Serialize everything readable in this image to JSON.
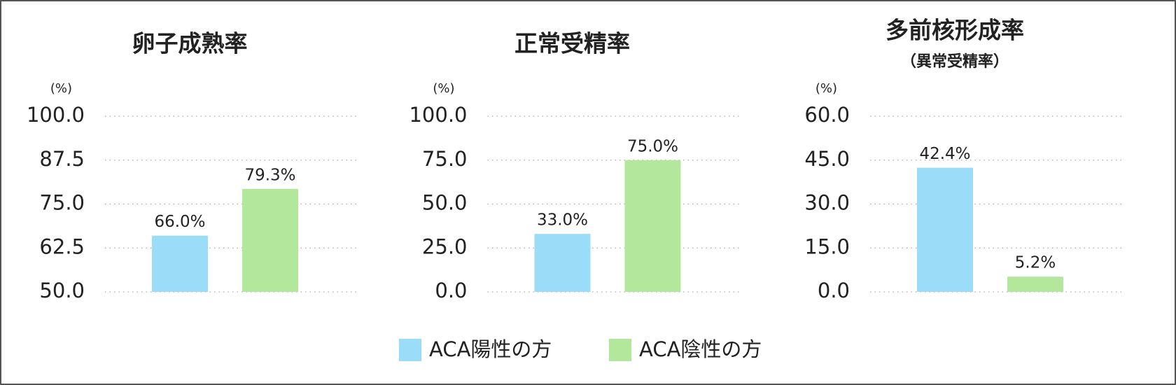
{
  "chart_data": [
    {
      "type": "bar",
      "title": "卵子成熟率",
      "y_unit": "(%)",
      "values": [
        66.0,
        79.3
      ],
      "value_labels": [
        "66.0%",
        "79.3%"
      ],
      "ylim": [
        50,
        100
      ],
      "yticks": [
        {
          "value": 50,
          "label": "50.0"
        },
        {
          "value": 62.5,
          "label": "62.5"
        },
        {
          "value": 75,
          "label": "75.0"
        },
        {
          "value": 87.5,
          "label": "87.5"
        },
        {
          "value": 100,
          "label": "100.0"
        }
      ],
      "grid": true
    },
    {
      "type": "bar",
      "title": "正常受精率",
      "y_unit": "(%)",
      "values": [
        33.0,
        75.0
      ],
      "value_labels": [
        "33.0%",
        "75.0%"
      ],
      "ylim": [
        0,
        100
      ],
      "yticks": [
        {
          "value": 0,
          "label": "0.0"
        },
        {
          "value": 25,
          "label": "25.0"
        },
        {
          "value": 50,
          "label": "50.0"
        },
        {
          "value": 75,
          "label": "75.0"
        },
        {
          "value": 100,
          "label": "100.0"
        }
      ],
      "grid": true
    },
    {
      "type": "bar",
      "title": "多前核形成率",
      "subtitle": "（異常受精率）",
      "y_unit": "(%)",
      "values": [
        42.4,
        5.2
      ],
      "value_labels": [
        "42.4%",
        "5.2%"
      ],
      "ylim": [
        0,
        60
      ],
      "yticks": [
        {
          "value": 0,
          "label": "0.0"
        },
        {
          "value": 15,
          "label": "15.0"
        },
        {
          "value": 30,
          "label": "30.0"
        },
        {
          "value": 45,
          "label": "45.0"
        },
        {
          "value": 60,
          "label": "60.0"
        }
      ],
      "grid": true
    }
  ],
  "legend": [
    {
      "name": "ACA陽性の方",
      "color": "#9bdcf8"
    },
    {
      "name": "ACA陰性の方",
      "color": "#b3e89c"
    }
  ]
}
